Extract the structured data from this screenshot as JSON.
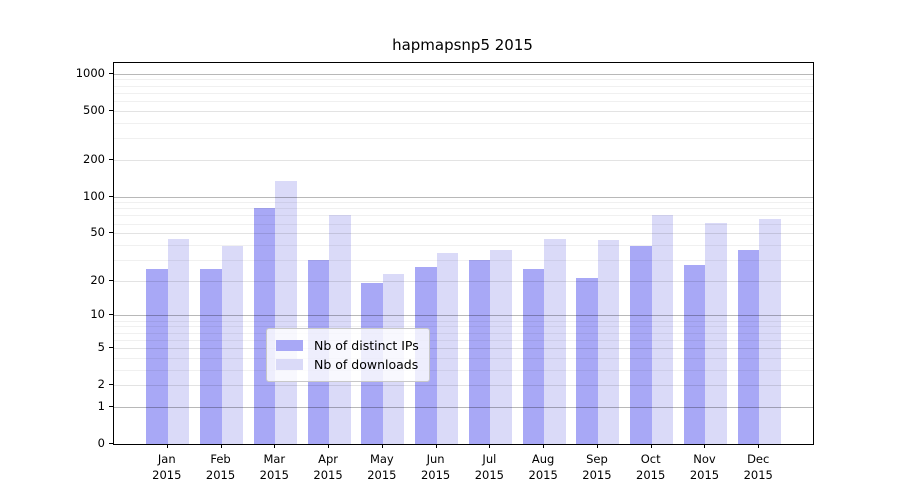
{
  "chart_data": {
    "type": "bar",
    "title": "hapmapsnp5 2015",
    "year_label": "2015",
    "categories": [
      "Jan",
      "Feb",
      "Mar",
      "Apr",
      "May",
      "Jun",
      "Jul",
      "Aug",
      "Sep",
      "Oct",
      "Nov",
      "Dec"
    ],
    "series": [
      {
        "name": "Nb of distinct IPs",
        "key": "distinct-ips",
        "color": "#a8a8f6",
        "values": [
          25,
          25,
          80,
          30,
          19,
          26,
          30,
          25,
          21,
          39,
          27,
          36
        ]
      },
      {
        "name": "Nb of downloads",
        "key": "downloads",
        "color": "#dadaf8",
        "values": [
          45,
          39,
          135,
          71,
          23,
          34,
          36,
          45,
          44,
          70,
          61,
          66
        ]
      }
    ],
    "xlabel": "",
    "ylabel": "",
    "y_axis": {
      "scale": "log1p",
      "tick_values": [
        0,
        1,
        2,
        5,
        10,
        20,
        50,
        100,
        200,
        500,
        1000
      ],
      "major_grid_values": [
        1,
        10,
        100,
        1000
      ],
      "mid_grid_values": [
        2,
        5,
        20,
        50,
        200,
        500
      ],
      "minor_grid_values": [
        3,
        4,
        6,
        7,
        8,
        9,
        30,
        40,
        60,
        70,
        80,
        90,
        300,
        400,
        600,
        700,
        800,
        900
      ],
      "ylim": [
        0,
        1220
      ]
    },
    "grid": "on",
    "legend_position": "lower-center"
  },
  "colors": {
    "background": "#ffffff",
    "spine": "#000000",
    "text": "#000000",
    "legend_border": "#c8c8c8"
  }
}
